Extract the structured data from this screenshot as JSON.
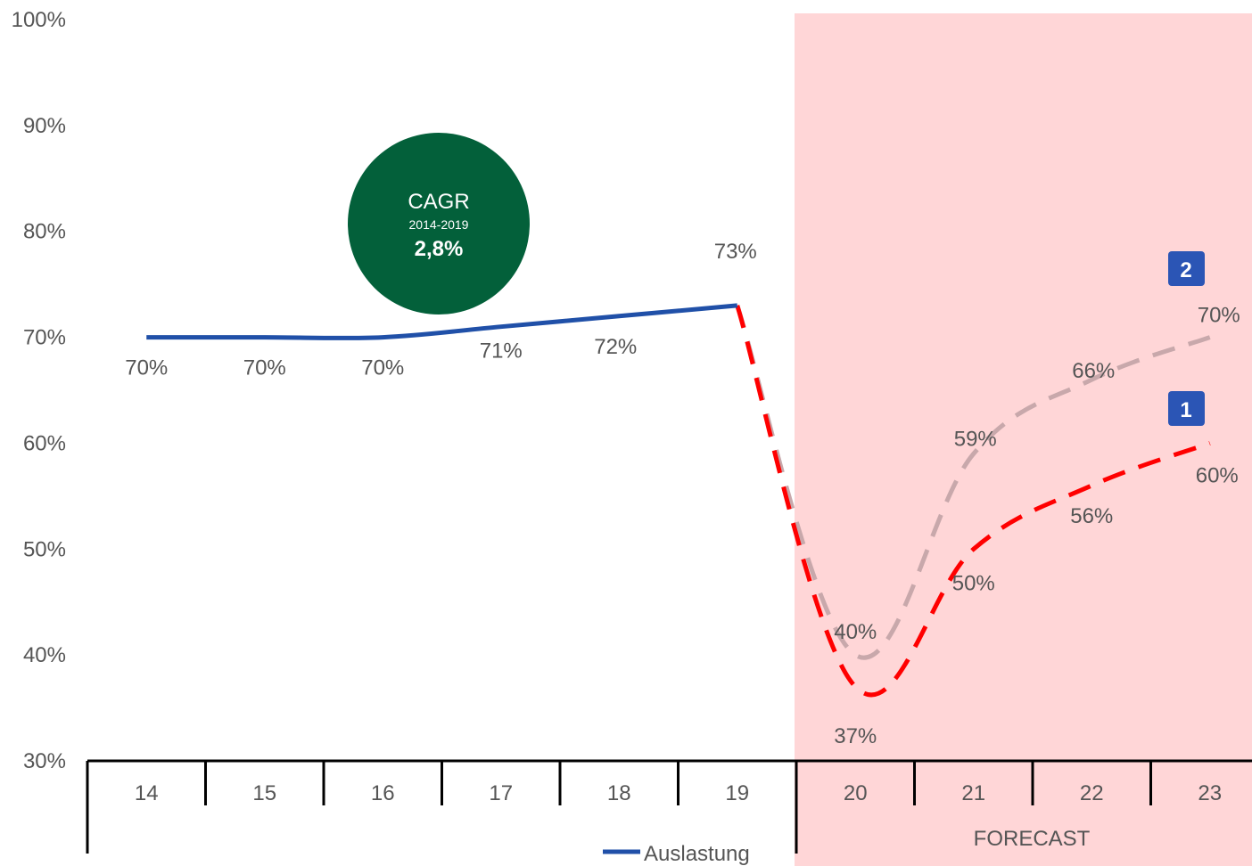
{
  "chart_data": {
    "type": "line",
    "title": "",
    "xlabel": "",
    "ylabel": "",
    "ylim": [
      30,
      100
    ],
    "y_ticks": [
      "100%",
      "90%",
      "80%",
      "70%",
      "60%",
      "50%",
      "40%",
      "30%"
    ],
    "y_tick_values": [
      100,
      90,
      80,
      70,
      60,
      50,
      40,
      30
    ],
    "categories": [
      "14",
      "15",
      "16",
      "17",
      "18",
      "19",
      "20",
      "21",
      "22",
      "23"
    ],
    "grid": false,
    "legend": {
      "placement": "bottom",
      "entries": [
        "Auslastung"
      ]
    },
    "forecast": {
      "label": "FORECAST",
      "from_category": "20",
      "to_category": "23",
      "color": "#FFD6D7"
    },
    "series": [
      {
        "name": "Auslastung",
        "color": "#2050A8",
        "style": "solid",
        "x": [
          "14",
          "15",
          "16",
          "17",
          "18",
          "19"
        ],
        "values": [
          70,
          70,
          70,
          71,
          72,
          73
        ],
        "labels": [
          "70%",
          "70%",
          "70%",
          "71%",
          "72%",
          "73%"
        ]
      },
      {
        "badge": "1",
        "color": "#FF0000",
        "style": "dashed",
        "x": [
          "19",
          "20",
          "21",
          "22",
          "23"
        ],
        "values": [
          73,
          37,
          50,
          56,
          60
        ],
        "labels": [
          "",
          "37%",
          "50%",
          "56%",
          "60%"
        ]
      },
      {
        "badge": "2",
        "color": "#C8A8AB",
        "style": "dashed",
        "x": [
          "19",
          "20",
          "21",
          "22",
          "23"
        ],
        "values": [
          73,
          40,
          59,
          66,
          70
        ],
        "labels": [
          "",
          "40%",
          "59%",
          "66%",
          "70%"
        ]
      }
    ],
    "annotations": {
      "cagr": {
        "title": "CAGR",
        "period": "2014-2019",
        "value": "2,8%",
        "color": "#03603A"
      },
      "badge_color": "#2B55B5"
    }
  }
}
